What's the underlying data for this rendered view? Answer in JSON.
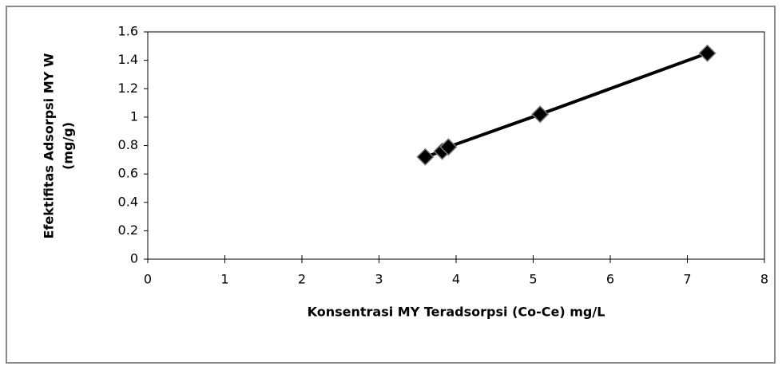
{
  "chart_data": {
    "type": "scatter",
    "line": true,
    "xlabel": "Konsentrasi MY Teradsorpsi (Co-Ce) mg/L",
    "ylabel": [
      "Efektifitas Adsorpsi MY W",
      "(mg/g)"
    ],
    "x": [
      3.6,
      3.82,
      3.9,
      5.09,
      7.26
    ],
    "series": [
      {
        "color": "#000000",
        "values": [
          0.72,
          0.76,
          0.79,
          1.02,
          1.45
        ]
      }
    ],
    "xlim": [
      0,
      8
    ],
    "xticks": [
      0,
      1,
      2,
      3,
      4,
      5,
      6,
      7,
      8
    ],
    "ylim": [
      0,
      1.6
    ],
    "yticks": [
      0,
      0.2,
      0.4,
      0.6,
      0.8,
      1,
      1.2,
      1.4,
      1.6
    ],
    "grid": false
  }
}
